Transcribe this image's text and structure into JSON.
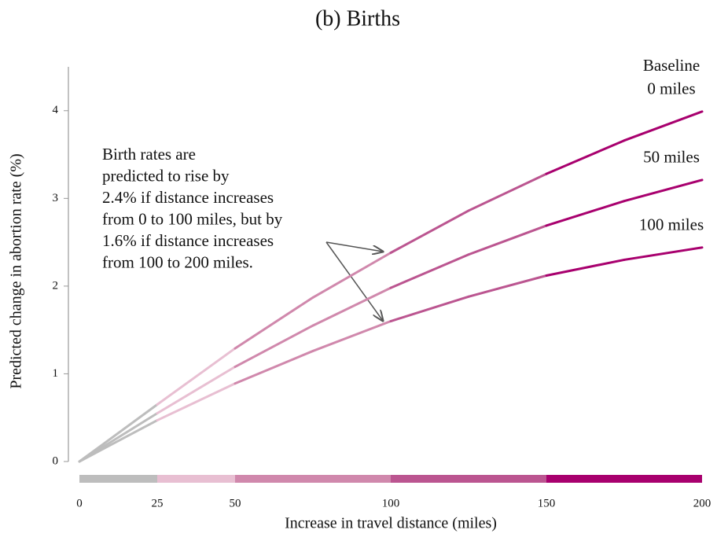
{
  "chart_data": {
    "type": "line",
    "title": "(b) Births",
    "x_label": "Increase in travel distance (miles)",
    "y_label": "Predicted change in abortion rate (%)",
    "legend_title": "Baseline",
    "annotation": [
      "Birth rates are",
      "predicted to rise by",
      "2.4% if distance increases",
      "from 0 to 100 miles, but by",
      "1.6% if distance increases",
      "from 100 to 200 miles."
    ],
    "x": [
      0,
      25,
      50,
      75,
      100,
      125,
      150,
      175,
      200
    ],
    "series": [
      {
        "name": "0 miles",
        "values": [
          0,
          0.65,
          1.29,
          1.87,
          2.38,
          2.86,
          3.28,
          3.66,
          3.99
        ]
      },
      {
        "name": "50 miles",
        "values": [
          0,
          0.55,
          1.08,
          1.55,
          1.98,
          2.36,
          2.69,
          2.97,
          3.21
        ]
      },
      {
        "name": "100 miles",
        "values": [
          0,
          0.47,
          0.89,
          1.26,
          1.6,
          1.88,
          2.12,
          2.3,
          2.44
        ]
      }
    ],
    "segment_breaks": [
      0,
      25,
      50,
      100,
      150,
      200
    ],
    "segment_colors": [
      "#bdbdbd",
      "#e8bfd2",
      "#d088ac",
      "#bb5590",
      "#a8006e"
    ],
    "xlim": [
      0,
      200
    ],
    "xticks": [
      0,
      25,
      50,
      100,
      150,
      200
    ],
    "ylim": [
      0,
      4.5
    ],
    "yticks": [
      0,
      1,
      2,
      3,
      4
    ]
  }
}
